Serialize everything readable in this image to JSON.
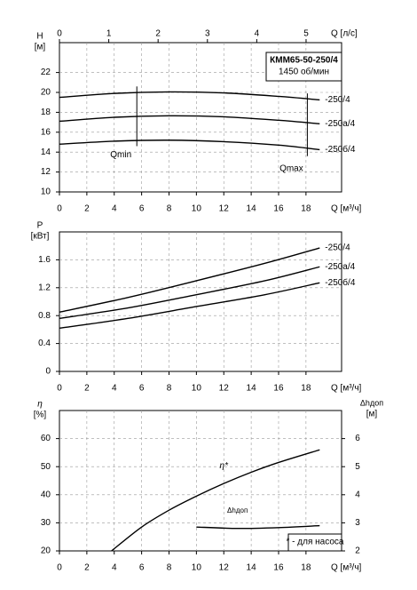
{
  "chart_data": [
    {
      "type": "line",
      "annotation_box": [
        "КММ65-50-250/4",
        "1450 об/мин"
      ],
      "x_label": "Q [м³/ч]",
      "x2_label": "Q [л/с]",
      "y_label": "H",
      "y_unit": "[м]",
      "xlim": [
        0,
        20.6
      ],
      "xticks": [
        0,
        2,
        4,
        6,
        8,
        10,
        12,
        14,
        16,
        18
      ],
      "x2lim": [
        0,
        5.72
      ],
      "x2ticks": [
        0,
        1,
        2,
        3,
        4,
        5
      ],
      "ylim": [
        10,
        25
      ],
      "yticks": [
        10,
        12,
        14,
        16,
        18,
        20,
        22
      ],
      "grid": true,
      "series": [
        {
          "name": "-250/4",
          "color": "#000000",
          "x": [
            0,
            4,
            8,
            12,
            16,
            19
          ],
          "values": [
            19.5,
            19.9,
            20.05,
            19.95,
            19.6,
            19.25
          ]
        },
        {
          "name": "-250а/4",
          "color": "#000000",
          "x": [
            0,
            4,
            8,
            12,
            16,
            19
          ],
          "values": [
            17.1,
            17.5,
            17.65,
            17.55,
            17.2,
            16.85
          ]
        },
        {
          "name": "-250б/4",
          "color": "#000000",
          "x": [
            0,
            4,
            8,
            12,
            16,
            19
          ],
          "values": [
            14.8,
            15.1,
            15.2,
            15.05,
            14.7,
            14.25
          ]
        }
      ],
      "markers": [
        {
          "label": "Qmin",
          "x": 5.65,
          "y": [
            14.6,
            20.6
          ]
        },
        {
          "label": "Qmax",
          "x": 18.1,
          "y": [
            13.6,
            19.9
          ]
        }
      ]
    },
    {
      "type": "line",
      "x_label": "Q [м³/ч]",
      "y_label": "P",
      "y_unit": "[кВт]",
      "xlim": [
        0,
        20.6
      ],
      "xticks": [
        0,
        2,
        4,
        6,
        8,
        10,
        12,
        14,
        16,
        18
      ],
      "ylim": [
        0,
        2.0
      ],
      "yticks": [
        0,
        0.4,
        0.8,
        1.2,
        1.6
      ],
      "grid": true,
      "series": [
        {
          "name": "-250/4",
          "color": "#000000",
          "x": [
            0,
            5,
            10,
            15,
            19
          ],
          "values": [
            0.85,
            1.06,
            1.3,
            1.55,
            1.77
          ]
        },
        {
          "name": "-250а/4",
          "color": "#000000",
          "x": [
            0,
            5,
            10,
            15,
            19
          ],
          "values": [
            0.76,
            0.91,
            1.1,
            1.3,
            1.5
          ]
        },
        {
          "name": "-250б/4",
          "color": "#000000",
          "x": [
            0,
            5,
            10,
            15,
            19
          ],
          "values": [
            0.62,
            0.76,
            0.93,
            1.1,
            1.27
          ]
        }
      ]
    },
    {
      "type": "line",
      "annotation_box": [
        "* - для насоса"
      ],
      "x_label": "Q [м³/ч]",
      "y_label": "η",
      "y_unit": "[%]",
      "y2_label": "Δhдоп",
      "y2_unit": "[м]",
      "xlim": [
        0,
        20.6
      ],
      "xticks": [
        0,
        2,
        4,
        6,
        8,
        10,
        12,
        14,
        16,
        18
      ],
      "ylim": [
        20,
        70
      ],
      "yticks": [
        20,
        30,
        40,
        50,
        60
      ],
      "y2lim": [
        2,
        7
      ],
      "y2ticks": [
        2,
        3,
        4,
        5,
        6
      ],
      "grid": true,
      "series": [
        {
          "name": "η*",
          "color": "#000000",
          "x": [
            3.8,
            6,
            8,
            10,
            12,
            14,
            16,
            19
          ],
          "values": [
            20,
            28.5,
            34.5,
            39.5,
            44,
            48,
            51.5,
            56
          ]
        },
        {
          "name": "Δhдоп",
          "color": "#000000",
          "axis": "y2",
          "x": [
            10,
            13,
            16,
            19
          ],
          "values": [
            2.85,
            2.8,
            2.83,
            2.9
          ]
        }
      ]
    }
  ]
}
